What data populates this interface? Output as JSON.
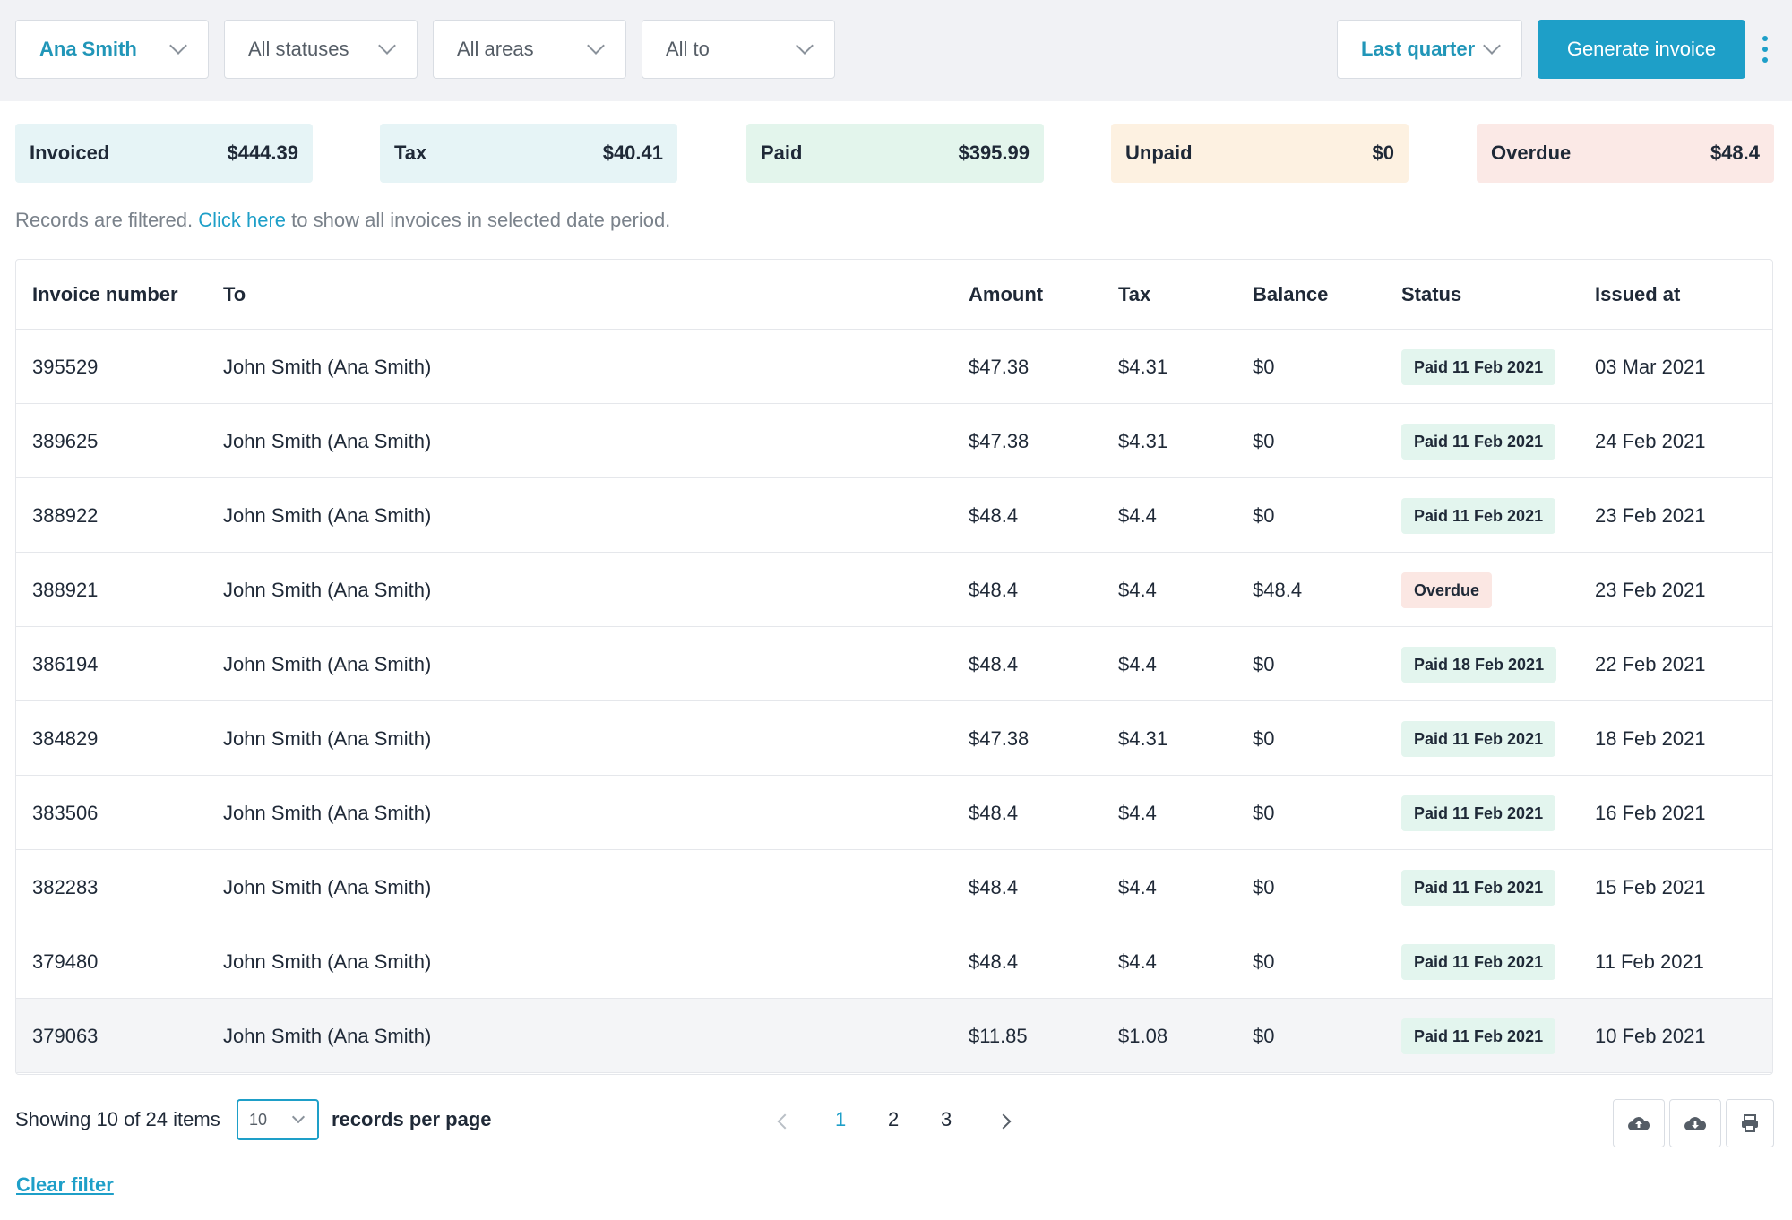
{
  "filters": {
    "person": "Ana Smith",
    "status": "All statuses",
    "area": "All areas",
    "to": "All to",
    "period": "Last quarter"
  },
  "actions": {
    "generate_label": "Generate invoice"
  },
  "summary": [
    {
      "label": "Invoiced",
      "value": "$444.39",
      "color": "#e6f4f6"
    },
    {
      "label": "Tax",
      "value": "$40.41",
      "color": "#e6f4f6"
    },
    {
      "label": "Paid",
      "value": "$395.99",
      "color": "#e3f5ec"
    },
    {
      "label": "Unpaid",
      "value": "$0",
      "color": "#fdf1e1"
    },
    {
      "label": "Overdue",
      "value": "$48.4",
      "color": "#fbe9e6"
    }
  ],
  "notice": {
    "prefix": "Records are filtered.",
    "link": "Click here",
    "suffix": "to show all invoices in selected date period."
  },
  "table": {
    "headers": [
      "Invoice number",
      "To",
      "Amount",
      "Tax",
      "Balance",
      "Status",
      "Issued at"
    ],
    "rows": [
      {
        "number": "395529",
        "to": "John Smith (Ana Smith)",
        "amount": "$47.38",
        "tax": "$4.31",
        "balance": "$0",
        "status": "Paid 11 Feb 2021",
        "status_type": "paid",
        "issued": "03 Mar 2021"
      },
      {
        "number": "389625",
        "to": "John Smith (Ana Smith)",
        "amount": "$47.38",
        "tax": "$4.31",
        "balance": "$0",
        "status": "Paid 11 Feb 2021",
        "status_type": "paid",
        "issued": "24 Feb 2021"
      },
      {
        "number": "388922",
        "to": "John Smith (Ana Smith)",
        "amount": "$48.4",
        "tax": "$4.4",
        "balance": "$0",
        "status": "Paid 11 Feb 2021",
        "status_type": "paid",
        "issued": "23 Feb 2021"
      },
      {
        "number": "388921",
        "to": "John Smith (Ana Smith)",
        "amount": "$48.4",
        "tax": "$4.4",
        "balance": "$48.4",
        "status": "Overdue",
        "status_type": "overdue",
        "issued": "23 Feb 2021"
      },
      {
        "number": "386194",
        "to": "John Smith (Ana Smith)",
        "amount": "$48.4",
        "tax": "$4.4",
        "balance": "$0",
        "status": "Paid 18 Feb 2021",
        "status_type": "paid",
        "issued": "22 Feb 2021"
      },
      {
        "number": "384829",
        "to": "John Smith (Ana Smith)",
        "amount": "$47.38",
        "tax": "$4.31",
        "balance": "$0",
        "status": "Paid 11 Feb 2021",
        "status_type": "paid",
        "issued": "18 Feb 2021"
      },
      {
        "number": "383506",
        "to": "John Smith (Ana Smith)",
        "amount": "$48.4",
        "tax": "$4.4",
        "balance": "$0",
        "status": "Paid 11 Feb 2021",
        "status_type": "paid",
        "issued": "16 Feb 2021"
      },
      {
        "number": "382283",
        "to": "John Smith (Ana Smith)",
        "amount": "$48.4",
        "tax": "$4.4",
        "balance": "$0",
        "status": "Paid 11 Feb 2021",
        "status_type": "paid",
        "issued": "15 Feb 2021"
      },
      {
        "number": "379480",
        "to": "John Smith (Ana Smith)",
        "amount": "$48.4",
        "tax": "$4.4",
        "balance": "$0",
        "status": "Paid 11 Feb 2021",
        "status_type": "paid",
        "issued": "11 Feb 2021"
      },
      {
        "number": "379063",
        "to": "John Smith (Ana Smith)",
        "amount": "$11.85",
        "tax": "$1.08",
        "balance": "$0",
        "status": "Paid 11 Feb 2021",
        "status_type": "paid",
        "issued": "10 Feb 2021"
      }
    ]
  },
  "pagination": {
    "showing": "Showing 10 of 24 items",
    "per_page": "10",
    "per_page_suffix": "records per page",
    "pages": [
      "1",
      "2",
      "3"
    ],
    "current": "1"
  },
  "footer": {
    "clear_filter": "Clear filter"
  },
  "icons": [
    "chevron-down-icon",
    "kebab-menu-icon",
    "chevron-left-icon",
    "chevron-right-icon",
    "cloud-upload-icon",
    "cloud-download-icon",
    "printer-icon"
  ],
  "colors": {
    "accent": "#1e9fc8",
    "paid_badge": "#e3f5ee",
    "overdue_badge": "#fbe7e3"
  }
}
